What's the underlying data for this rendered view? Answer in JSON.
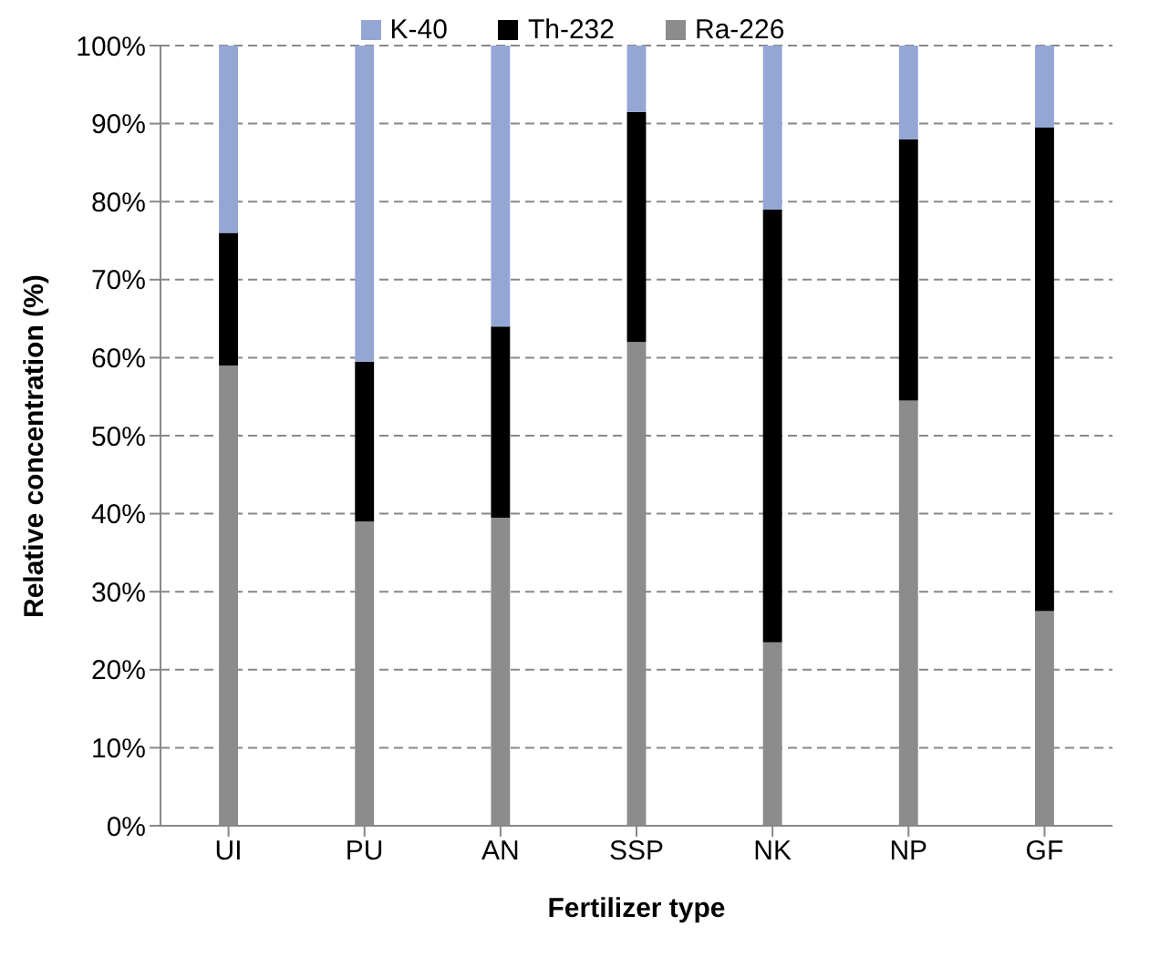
{
  "chart_data": {
    "type": "bar",
    "stacked": true,
    "xlabel": "Fertilizer type",
    "ylabel": "Relative concentration (%)",
    "categories": [
      "UI",
      "PU",
      "AN",
      "SSP",
      "NK",
      "NP",
      "GF"
    ],
    "series": [
      {
        "name": "Ra-226",
        "color": "#8c8c8c",
        "values": [
          59,
          39,
          39.5,
          62,
          23.5,
          54.5,
          27.5
        ]
      },
      {
        "name": "Th-232",
        "color": "#000000",
        "values": [
          17,
          20.5,
          24.5,
          29.5,
          55.5,
          33.5,
          62
        ]
      },
      {
        "name": "K-40",
        "color": "#94a6d4",
        "values": [
          24,
          40.5,
          36,
          8.5,
          21,
          12,
          10.5
        ]
      }
    ],
    "ylim": [
      0,
      100
    ],
    "yticks": [
      {
        "value": 0,
        "label": "0%"
      },
      {
        "value": 10,
        "label": "10%"
      },
      {
        "value": 20,
        "label": "20%"
      },
      {
        "value": 30,
        "label": "30%"
      },
      {
        "value": 40,
        "label": "40%"
      },
      {
        "value": 50,
        "label": "50%"
      },
      {
        "value": 60,
        "label": "60%"
      },
      {
        "value": 70,
        "label": "70%"
      },
      {
        "value": 80,
        "label": "80%"
      },
      {
        "value": 90,
        "label": "90%"
      },
      {
        "value": 100,
        "label": "100%"
      }
    ],
    "grid": "y",
    "legend": "top"
  }
}
